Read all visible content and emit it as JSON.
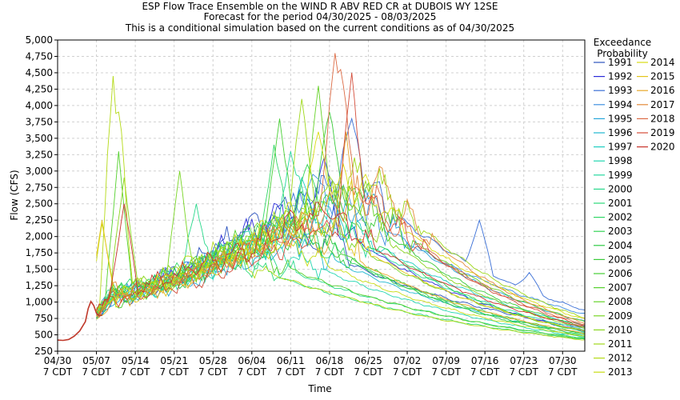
{
  "chart_data": {
    "type": "line",
    "title": "ESP Flow Trace Ensemble on the WIND R ABV RED CR at DUBOIS WY 12SE",
    "subtitle1": "Forecast for the period 04/30/2025 - 08/03/2025",
    "subtitle2": "This is a conditional simulation based on the current conditions as of 04/30/2025",
    "xlabel": "Time",
    "ylabel": "Flow (CFS)",
    "ylim": [
      250,
      5000
    ],
    "y_ticks": [
      "250",
      "500",
      "750",
      "1,000",
      "1,250",
      "1,500",
      "1,750",
      "2,000",
      "2,250",
      "2,500",
      "2,750",
      "3,000",
      "3,250",
      "3,500",
      "3,750",
      "4,000",
      "4,250",
      "4,500",
      "4,750",
      "5,000"
    ],
    "x_ticks": [
      {
        "date": "04/30",
        "tz": "7 CDT",
        "day": 0
      },
      {
        "date": "05/07",
        "tz": "7 CDT",
        "day": 7
      },
      {
        "date": "05/14",
        "tz": "7 CDT",
        "day": 14
      },
      {
        "date": "05/21",
        "tz": "7 CDT",
        "day": 21
      },
      {
        "date": "05/28",
        "tz": "7 CDT",
        "day": 28
      },
      {
        "date": "06/04",
        "tz": "7 CDT",
        "day": 35
      },
      {
        "date": "06/11",
        "tz": "7 CDT",
        "day": 42
      },
      {
        "date": "06/18",
        "tz": "7 CDT",
        "day": 49
      },
      {
        "date": "06/25",
        "tz": "7 CDT",
        "day": 56
      },
      {
        "date": "07/02",
        "tz": "7 CDT",
        "day": 63
      },
      {
        "date": "07/09",
        "tz": "7 CDT",
        "day": 70
      },
      {
        "date": "07/16",
        "tz": "7 CDT",
        "day": 77
      },
      {
        "date": "07/23",
        "tz": "7 CDT",
        "day": 84
      },
      {
        "date": "07/30",
        "tz": "7 CDT",
        "day": 91
      }
    ],
    "x_range_days": [
      0,
      95
    ],
    "grid": true,
    "legend": {
      "title1": "Exceedance",
      "title2": "Probability",
      "placement": "right"
    },
    "observed": [
      [
        0,
        420
      ],
      [
        1,
        415
      ],
      [
        2,
        430
      ],
      [
        3,
        480
      ],
      [
        4,
        560
      ],
      [
        5,
        700
      ],
      [
        5.5,
        900
      ],
      [
        6,
        1010
      ],
      [
        6.5,
        950
      ],
      [
        7,
        830
      ],
      [
        7.5,
        790
      ],
      [
        8,
        800
      ]
    ],
    "series": [
      {
        "name": "1991",
        "color": "#2a52be",
        "peak_day": 36,
        "peak": 2300,
        "end": 600,
        "spikes": [
          [
            41,
            2600
          ],
          [
            50,
            2500
          ]
        ]
      },
      {
        "name": "1992",
        "color": "#2b2bd9",
        "peak_day": 44,
        "peak": 2600,
        "end": 560,
        "spikes": [
          [
            48,
            3200
          ]
        ]
      },
      {
        "name": "1993",
        "color": "#3a6fd6",
        "peak_day": 52,
        "peak": 3000,
        "end": 880,
        "spikes": [
          [
            53,
            3800
          ],
          [
            76,
            2250
          ],
          [
            85,
            1450
          ]
        ]
      },
      {
        "name": "1994",
        "color": "#3f8fe0",
        "peak_day": 50,
        "peak": 2700,
        "end": 820,
        "spikes": [
          [
            46,
            2950
          ]
        ]
      },
      {
        "name": "1995",
        "color": "#27a6d9",
        "peak_day": 55,
        "peak": 2500,
        "end": 700,
        "spikes": [
          [
            57,
            2650
          ]
        ]
      },
      {
        "name": "1996",
        "color": "#1fb8d0",
        "peak_day": 40,
        "peak": 2100,
        "end": 520,
        "spikes": []
      },
      {
        "name": "1997",
        "color": "#1ecdc1",
        "peak_day": 49,
        "peak": 2400,
        "end": 640,
        "spikes": [
          [
            44,
            2900
          ]
        ]
      },
      {
        "name": "1998",
        "color": "#22d6b0",
        "peak_day": 38,
        "peak": 1900,
        "end": 470,
        "spikes": []
      },
      {
        "name": "1999",
        "color": "#25d89e",
        "peak_day": 46,
        "peak": 2500,
        "end": 580,
        "spikes": [
          [
            42,
            3300
          ]
        ]
      },
      {
        "name": "2000",
        "color": "#28d88b",
        "peak_day": 33,
        "peak": 1800,
        "end": 450,
        "spikes": [
          [
            25,
            2500
          ]
        ]
      },
      {
        "name": "2001",
        "color": "#2bd878",
        "peak_day": 30,
        "peak": 1700,
        "end": 430,
        "spikes": []
      },
      {
        "name": "2002",
        "color": "#30d766",
        "peak_day": 42,
        "peak": 2200,
        "end": 500,
        "spikes": [
          [
            39,
            3400
          ]
        ]
      },
      {
        "name": "2003",
        "color": "#33d455",
        "peak_day": 48,
        "peak": 2600,
        "end": 540,
        "spikes": [
          [
            45,
            3100
          ]
        ]
      },
      {
        "name": "2004",
        "color": "#2fc944",
        "peak_day": 44,
        "peak": 2100,
        "end": 480,
        "spikes": []
      },
      {
        "name": "2005",
        "color": "#3acb3a",
        "peak_day": 50,
        "peak": 2800,
        "end": 620,
        "spikes": [
          [
            49,
            3900
          ]
        ]
      },
      {
        "name": "2006",
        "color": "#47cf34",
        "peak_day": 41,
        "peak": 2300,
        "end": 520,
        "spikes": [
          [
            40,
            3800
          ]
        ]
      },
      {
        "name": "2007",
        "color": "#55d12e",
        "peak_day": 32,
        "peak": 1900,
        "end": 440,
        "spikes": [
          [
            11,
            3300
          ]
        ]
      },
      {
        "name": "2008",
        "color": "#66d329",
        "peak_day": 54,
        "peak": 2700,
        "end": 700,
        "spikes": [
          [
            47,
            4300
          ]
        ]
      },
      {
        "name": "2009",
        "color": "#78d524",
        "peak_day": 45,
        "peak": 2400,
        "end": 560,
        "spikes": [
          [
            22,
            3000
          ]
        ]
      },
      {
        "name": "2010",
        "color": "#8ad61f",
        "peak_day": 51,
        "peak": 2600,
        "end": 600,
        "spikes": [
          [
            12,
            2900
          ]
        ]
      },
      {
        "name": "2011",
        "color": "#9fd81b",
        "peak_day": 56,
        "peak": 3000,
        "end": 760,
        "spikes": [
          [
            44,
            4100
          ]
        ]
      },
      {
        "name": "2012",
        "color": "#b4da17",
        "peak_day": 28,
        "peak": 1800,
        "end": 420,
        "spikes": [
          [
            10,
            4450
          ],
          [
            11,
            3900
          ]
        ]
      },
      {
        "name": "2013",
        "color": "#c8dc14",
        "peak_day": 39,
        "peak": 2000,
        "end": 480,
        "spikes": [
          [
            8,
            2200
          ]
        ]
      },
      {
        "name": "2014",
        "color": "#d8dc12",
        "peak_day": 53,
        "peak": 2900,
        "end": 740,
        "spikes": [
          [
            47,
            3600
          ]
        ]
      },
      {
        "name": "2015",
        "color": "#e3c41a",
        "peak_day": 47,
        "peak": 2300,
        "end": 560,
        "spikes": [
          [
            8,
            2250
          ]
        ]
      },
      {
        "name": "2016",
        "color": "#e8a82a",
        "peak_day": 43,
        "peak": 2200,
        "end": 520,
        "spikes": [
          [
            52,
            3600
          ]
        ]
      },
      {
        "name": "2017",
        "color": "#e38a3a",
        "peak_day": 58,
        "peak": 2800,
        "end": 680,
        "spikes": [
          [
            59,
            2700
          ]
        ]
      },
      {
        "name": "2018",
        "color": "#dc6b45",
        "peak_day": 55,
        "peak": 2700,
        "end": 660,
        "spikes": [
          [
            50,
            4800
          ],
          [
            51,
            4550
          ]
        ]
      },
      {
        "name": "2019",
        "color": "#d44d3a",
        "peak_day": 57,
        "peak": 2500,
        "end": 640,
        "spikes": [
          [
            53,
            4500
          ]
        ]
      },
      {
        "name": "2020",
        "color": "#c8332c",
        "peak_day": 48,
        "peak": 2400,
        "end": 620,
        "spikes": [
          [
            12,
            2500
          ]
        ]
      }
    ]
  }
}
